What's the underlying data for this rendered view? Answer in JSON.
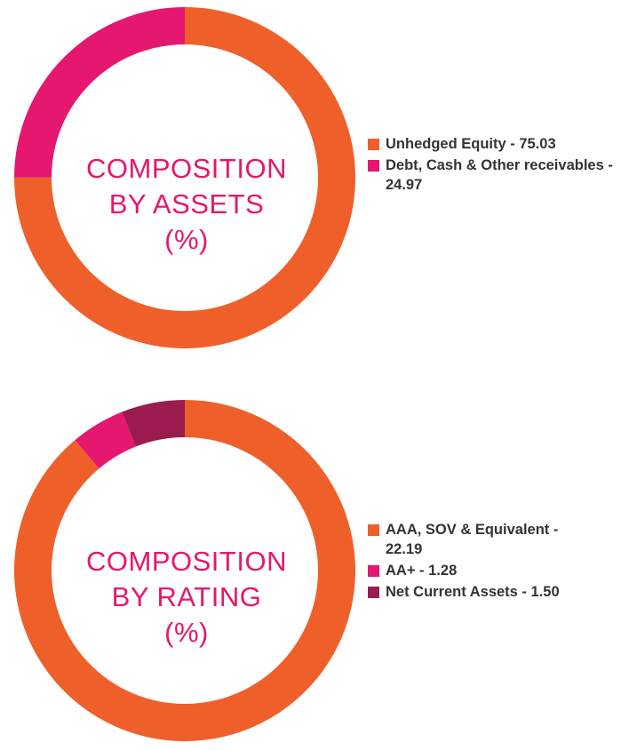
{
  "chart_data": [
    {
      "type": "pie",
      "title_lines": [
        "COMPOSITION",
        "BY ASSETS",
        "(%)"
      ],
      "slices": [
        {
          "label": "Unhedged Equity - 75.03",
          "value": 75.03,
          "color": "#ef5f2a"
        },
        {
          "label": "Debt, Cash & Other receivables - 24.97",
          "value": 24.97,
          "color": "#e5176e"
        }
      ]
    },
    {
      "type": "pie",
      "title_lines": [
        "COMPOSITION",
        "BY RATING",
        "(%)"
      ],
      "slices": [
        {
          "label": "AAA, SOV & Equivalent - 22.19",
          "value": 22.19,
          "color": "#ef5f2a"
        },
        {
          "label": "AA+ - 1.28",
          "value": 1.28,
          "color": "#e5176e"
        },
        {
          "label": "Net Current Assets - 1.50",
          "value": 1.5,
          "color": "#9b1b50"
        }
      ]
    }
  ]
}
